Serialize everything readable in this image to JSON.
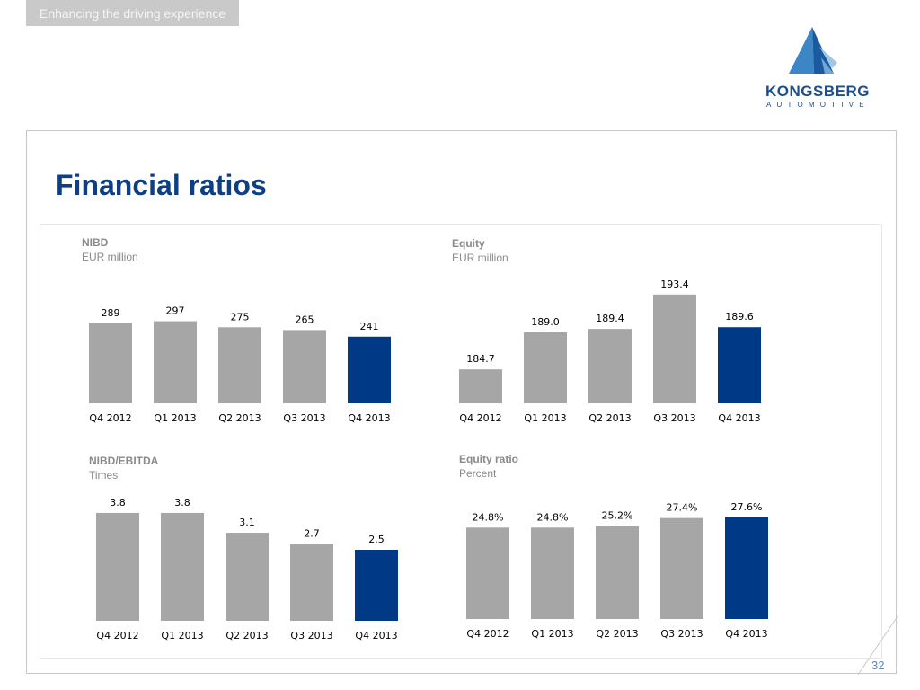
{
  "header": {
    "tagline": "Enhancing the driving experience",
    "logo_word": "KONGSBERG",
    "logo_sub": "AUTOMOTIVE"
  },
  "slide": {
    "title": "Financial ratios",
    "page_number": "32"
  },
  "colors": {
    "bar_default": "#a6a6a6",
    "bar_highlight": "#003a87",
    "title": "#0e3f82"
  },
  "chart_data": [
    {
      "type": "bar",
      "title": "NIBD",
      "subtitle": "EUR million",
      "categories": [
        "Q4 2012",
        "Q1 2013",
        "Q2 2013",
        "Q3 2013",
        "Q4 2013"
      ],
      "values": [
        289,
        297,
        275,
        265,
        241
      ],
      "data_labels": [
        "289",
        "297",
        "275",
        "265",
        "241"
      ],
      "highlight_index": 4
    },
    {
      "type": "bar",
      "title": "Equity",
      "subtitle": "EUR million",
      "categories": [
        "Q4 2012",
        "Q1 2013",
        "Q2 2013",
        "Q3 2013",
        "Q4 2013"
      ],
      "values": [
        184.7,
        189.0,
        189.4,
        193.4,
        189.6
      ],
      "data_labels": [
        "184.7",
        "189.0",
        "189.4",
        "193.4",
        "189.6"
      ],
      "highlight_index": 4
    },
    {
      "type": "bar",
      "title": "NIBD/EBITDA",
      "subtitle": "Times",
      "categories": [
        "Q4 2012",
        "Q1 2013",
        "Q2 2013",
        "Q3 2013",
        "Q4 2013"
      ],
      "values": [
        3.8,
        3.8,
        3.1,
        2.7,
        2.5
      ],
      "data_labels": [
        "3.8",
        "3.8",
        "3.1",
        "2.7",
        "2.5"
      ],
      "highlight_index": 4
    },
    {
      "type": "bar",
      "title": "Equity ratio",
      "subtitle": "Percent",
      "categories": [
        "Q4 2012",
        "Q1 2013",
        "Q2 2013",
        "Q3 2013",
        "Q4 2013"
      ],
      "values": [
        24.8,
        24.8,
        25.2,
        27.4,
        27.6
      ],
      "data_labels": [
        "24.8%",
        "24.8%",
        "25.2%",
        "27.4%",
        "27.6%"
      ],
      "highlight_index": 4
    }
  ]
}
